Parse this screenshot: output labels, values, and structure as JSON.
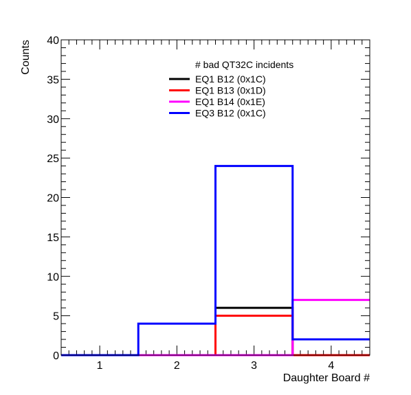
{
  "chart_data": {
    "type": "histogram",
    "title": "",
    "xlabel": "Daughter Board #",
    "ylabel": "Counts",
    "xlim": [
      0.5,
      4.5
    ],
    "ylim": [
      0,
      40
    ],
    "x_ticks": [
      "1",
      "2",
      "3",
      "4"
    ],
    "y_ticks": [
      "0",
      "5",
      "10",
      "15",
      "20",
      "25",
      "30",
      "35",
      "40"
    ],
    "bin_edges": [
      0.5,
      1.5,
      2.5,
      3.5,
      4.5
    ],
    "legend": {
      "title": "# bad QT32C incidents",
      "placement": "top-center"
    },
    "series": [
      {
        "name": "EQ1 B12 (0x1C)",
        "color": "#000000",
        "values": [
          0,
          0,
          6,
          0
        ]
      },
      {
        "name": "EQ1 B13 (0x1D)",
        "color": "#ff0000",
        "values": [
          0,
          0,
          5,
          0
        ]
      },
      {
        "name": "EQ1 B14 (0x1E)",
        "color": "#ff00ff",
        "values": [
          0,
          0,
          0,
          7
        ]
      },
      {
        "name": "EQ3 B12 (0x1C)",
        "color": "#0000ff",
        "values": [
          0,
          4,
          24,
          2
        ]
      }
    ]
  }
}
